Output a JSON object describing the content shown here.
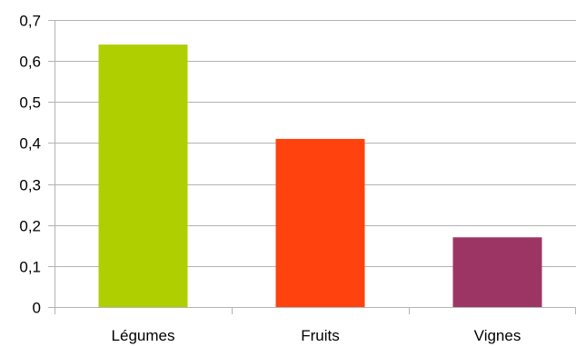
{
  "chart_data": {
    "type": "bar",
    "title": "",
    "xlabel": "",
    "ylabel": "",
    "categories": [
      "Légumes",
      "Fruits",
      "Vignes"
    ],
    "values": [
      0.64,
      0.41,
      0.17
    ],
    "colors": [
      "#b0cf00",
      "#ff420e",
      "#9c3563"
    ],
    "ylim": [
      0,
      0.7
    ],
    "y_ticks": [
      0,
      0.1,
      0.2,
      0.3,
      0.4,
      0.5,
      0.6,
      0.7
    ],
    "y_tick_labels": [
      "0",
      "0,1",
      "0,2",
      "0,3",
      "0,4",
      "0,5",
      "0,6",
      "0,7"
    ],
    "grid": true,
    "legend": "none"
  }
}
